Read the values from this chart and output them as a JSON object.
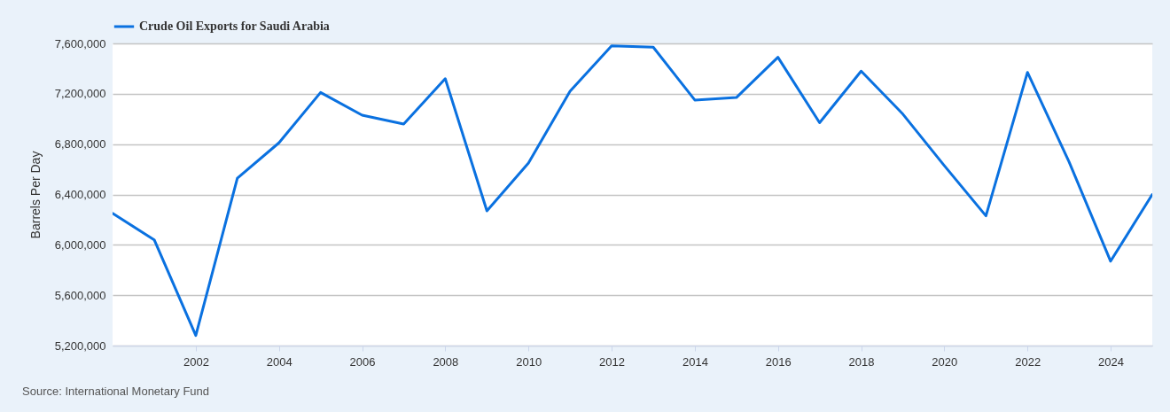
{
  "chart_data": {
    "type": "line",
    "ylabel": "Barrels Per Day",
    "annotations": [
      "Source: International Monetary Fund"
    ],
    "x": [
      "2000",
      "2001",
      "2002",
      "2003",
      "2004",
      "2005",
      "2006",
      "2007",
      "2008",
      "2009",
      "2010",
      "2011",
      "2012",
      "2013",
      "2014",
      "2015",
      "2016",
      "2017",
      "2018",
      "2019",
      "2020",
      "2021",
      "2022",
      "2023",
      "2024",
      "2025"
    ],
    "series": [
      {
        "name": "Crude Oil Exports for Saudi Arabia",
        "color": "#0a71e0",
        "line_style": "solid",
        "values": [
          6250000,
          6040000,
          5280000,
          6530000,
          6810000,
          7210000,
          7030000,
          6960000,
          7320000,
          6270000,
          6650000,
          7220000,
          7580000,
          7570000,
          7150000,
          7170000,
          7490000,
          6970000,
          7380000,
          7040000,
          6630000,
          6230000,
          7370000,
          6660000,
          5870000,
          6400000
        ]
      }
    ],
    "xlim": [
      "2000",
      "2025"
    ],
    "xticks": [
      "2002",
      "2004",
      "2006",
      "2008",
      "2010",
      "2012",
      "2014",
      "2016",
      "2018",
      "2020",
      "2022",
      "2024"
    ],
    "ylim": [
      5200000,
      7600000
    ],
    "yticks": [
      {
        "value": 5200000,
        "label": "5,200,000"
      },
      {
        "value": 5600000,
        "label": "5,600,000"
      },
      {
        "value": 6000000,
        "label": "6,000,000"
      },
      {
        "value": 6400000,
        "label": "6,400,000"
      },
      {
        "value": 6800000,
        "label": "6,800,000"
      },
      {
        "value": 7200000,
        "label": "7,200,000"
      },
      {
        "value": 7600000,
        "label": "7,600,000"
      }
    ],
    "grid": "y",
    "legend": "top left"
  }
}
